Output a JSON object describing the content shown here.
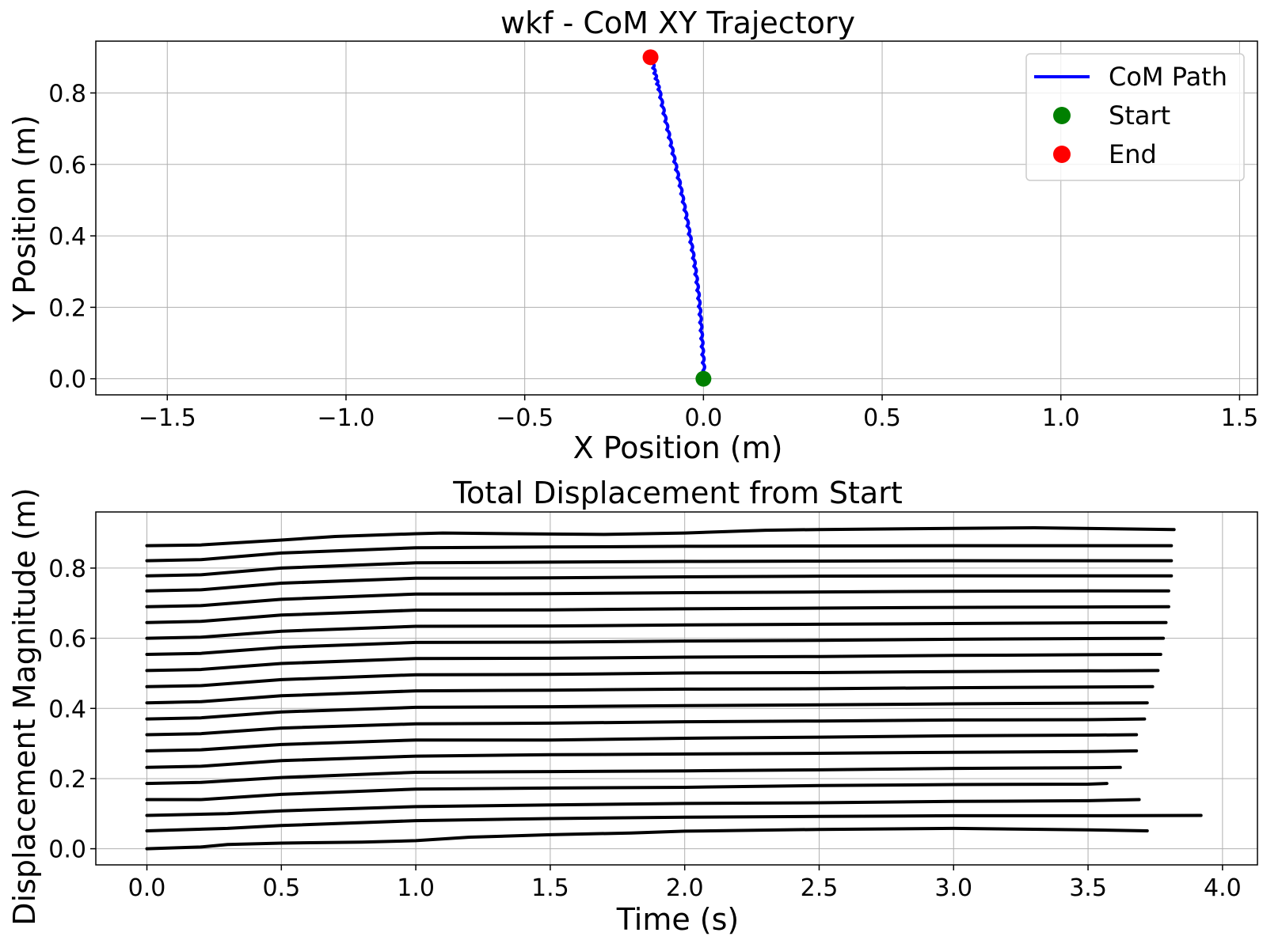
{
  "chart_data": [
    {
      "type": "line",
      "title": "wkf - CoM XY Trajectory",
      "xlabel": "X Position (m)",
      "ylabel": "Y Position (m)",
      "xlim": [
        -1.7,
        1.55
      ],
      "ylim": [
        -0.045,
        0.945
      ],
      "xticks": [
        -1.5,
        -1.0,
        -0.5,
        0.0,
        0.5,
        1.0,
        1.5
      ],
      "xtick_labels": [
        "−1.5",
        "−1.0",
        "−0.5",
        "0.0",
        "0.5",
        "1.0",
        "1.5"
      ],
      "yticks": [
        0.0,
        0.2,
        0.4,
        0.6,
        0.8
      ],
      "ytick_labels": [
        "0.0",
        "0.2",
        "0.4",
        "0.6",
        "0.8"
      ],
      "grid": true,
      "legend_position": "top-right",
      "series": [
        {
          "name": "CoM Path",
          "color": "#0000ff",
          "x": [
            0.0,
            -0.003,
            -0.006,
            -0.009,
            -0.012,
            -0.016,
            -0.021,
            -0.027,
            -0.034,
            -0.042,
            -0.05,
            -0.059,
            -0.068,
            -0.078,
            -0.088,
            -0.098,
            -0.108,
            -0.118,
            -0.127,
            -0.135,
            -0.142,
            -0.148
          ],
          "y": [
            0.0,
            0.045,
            0.09,
            0.135,
            0.18,
            0.225,
            0.27,
            0.315,
            0.36,
            0.405,
            0.45,
            0.495,
            0.54,
            0.585,
            0.63,
            0.675,
            0.72,
            0.765,
            0.81,
            0.84,
            0.87,
            0.9
          ]
        }
      ],
      "markers": [
        {
          "name": "Start",
          "color": "#008000",
          "x": 0.0,
          "y": 0.0
        },
        {
          "name": "End",
          "color": "#ff0000",
          "x": -0.148,
          "y": 0.9
        }
      ]
    },
    {
      "type": "line",
      "title": "Total Displacement from Start",
      "xlabel": "Time (s)",
      "ylabel": "Displacement Magnitude (m)",
      "xlim": [
        -0.19,
        4.13
      ],
      "ylim": [
        -0.046,
        0.96
      ],
      "xticks": [
        0.0,
        0.5,
        1.0,
        1.5,
        2.0,
        2.5,
        3.0,
        3.5,
        4.0
      ],
      "xtick_labels": [
        "0.0",
        "0.5",
        "1.0",
        "1.5",
        "2.0",
        "2.5",
        "3.0",
        "3.5",
        "4.0"
      ],
      "yticks": [
        0.0,
        0.2,
        0.4,
        0.6,
        0.8
      ],
      "ytick_labels": [
        "0.0",
        "0.2",
        "0.4",
        "0.6",
        "0.8"
      ],
      "grid": true,
      "line_color": "#000000",
      "segments": [
        {
          "t": [
            0.0,
            0.2,
            0.3,
            0.5,
            0.8,
            1.0,
            1.2,
            1.5,
            1.8,
            2.0,
            2.5,
            3.0,
            3.5,
            3.72
          ],
          "y": [
            0.0,
            0.005,
            0.012,
            0.016,
            0.019,
            0.023,
            0.033,
            0.04,
            0.045,
            0.05,
            0.055,
            0.058,
            0.054,
            0.051
          ]
        },
        {
          "t": [
            0.0,
            0.3,
            0.5,
            1.0,
            1.5,
            2.0,
            2.5,
            3.0,
            3.5,
            3.92
          ],
          "y": [
            0.051,
            0.058,
            0.066,
            0.08,
            0.086,
            0.09,
            0.092,
            0.094,
            0.094,
            0.095
          ]
        },
        {
          "t": [
            0.0,
            0.3,
            0.5,
            1.0,
            1.5,
            2.0,
            2.5,
            3.0,
            3.5,
            3.69
          ],
          "y": [
            0.095,
            0.1,
            0.108,
            0.12,
            0.125,
            0.129,
            0.131,
            0.135,
            0.137,
            0.14
          ]
        },
        {
          "t": [
            0.0,
            0.2,
            0.5,
            1.0,
            1.5,
            2.0,
            2.5,
            3.0,
            3.5,
            3.57
          ],
          "y": [
            0.14,
            0.14,
            0.155,
            0.17,
            0.173,
            0.175,
            0.18,
            0.183,
            0.184,
            0.186
          ]
        },
        {
          "t": [
            0.0,
            0.2,
            0.5,
            1.0,
            1.5,
            2.0,
            2.5,
            3.0,
            3.5,
            3.62
          ],
          "y": [
            0.186,
            0.189,
            0.203,
            0.218,
            0.22,
            0.222,
            0.225,
            0.229,
            0.231,
            0.232
          ]
        },
        {
          "t": [
            0.0,
            0.2,
            0.5,
            1.0,
            1.5,
            2.0,
            2.5,
            3.0,
            3.5,
            3.68
          ],
          "y": [
            0.232,
            0.235,
            0.251,
            0.264,
            0.268,
            0.27,
            0.272,
            0.275,
            0.277,
            0.279
          ]
        },
        {
          "t": [
            0.0,
            0.2,
            0.5,
            1.0,
            1.5,
            2.0,
            2.5,
            3.0,
            3.5,
            3.68
          ],
          "y": [
            0.279,
            0.282,
            0.297,
            0.31,
            0.31,
            0.315,
            0.318,
            0.322,
            0.324,
            0.325
          ]
        },
        {
          "t": [
            0.0,
            0.2,
            0.5,
            1.0,
            1.5,
            2.0,
            2.5,
            3.0,
            3.5,
            3.71
          ],
          "y": [
            0.325,
            0.328,
            0.344,
            0.356,
            0.358,
            0.362,
            0.364,
            0.367,
            0.368,
            0.37
          ]
        },
        {
          "t": [
            0.0,
            0.2,
            0.5,
            1.0,
            1.5,
            2.0,
            2.5,
            3.0,
            3.5,
            3.72
          ],
          "y": [
            0.37,
            0.373,
            0.39,
            0.403,
            0.405,
            0.408,
            0.41,
            0.413,
            0.415,
            0.416
          ]
        },
        {
          "t": [
            0.0,
            0.2,
            0.5,
            1.0,
            1.5,
            2.0,
            2.5,
            3.0,
            3.5,
            3.74
          ],
          "y": [
            0.416,
            0.419,
            0.436,
            0.45,
            0.452,
            0.455,
            0.456,
            0.459,
            0.461,
            0.462
          ]
        },
        {
          "t": [
            0.0,
            0.2,
            0.5,
            1.0,
            1.5,
            2.0,
            2.5,
            3.0,
            3.5,
            3.76
          ],
          "y": [
            0.462,
            0.465,
            0.482,
            0.496,
            0.497,
            0.501,
            0.502,
            0.505,
            0.507,
            0.508
          ]
        },
        {
          "t": [
            0.0,
            0.2,
            0.5,
            1.0,
            1.5,
            2.0,
            2.5,
            3.0,
            3.5,
            3.77
          ],
          "y": [
            0.508,
            0.511,
            0.528,
            0.542,
            0.543,
            0.546,
            0.548,
            0.551,
            0.553,
            0.554
          ]
        },
        {
          "t": [
            0.0,
            0.2,
            0.5,
            1.0,
            1.5,
            2.0,
            2.5,
            3.0,
            3.5,
            3.78
          ],
          "y": [
            0.554,
            0.557,
            0.574,
            0.588,
            0.589,
            0.592,
            0.594,
            0.597,
            0.599,
            0.6
          ]
        },
        {
          "t": [
            0.0,
            0.2,
            0.5,
            1.0,
            1.5,
            2.0,
            2.5,
            3.0,
            3.5,
            3.79
          ],
          "y": [
            0.6,
            0.603,
            0.62,
            0.634,
            0.635,
            0.638,
            0.64,
            0.642,
            0.644,
            0.645
          ]
        },
        {
          "t": [
            0.0,
            0.2,
            0.5,
            1.0,
            1.5,
            2.0,
            2.5,
            3.0,
            3.5,
            3.8
          ],
          "y": [
            0.645,
            0.648,
            0.666,
            0.68,
            0.681,
            0.684,
            0.686,
            0.688,
            0.689,
            0.69
          ]
        },
        {
          "t": [
            0.0,
            0.2,
            0.5,
            1.0,
            1.5,
            2.0,
            2.5,
            3.0,
            3.5,
            3.8
          ],
          "y": [
            0.69,
            0.693,
            0.711,
            0.726,
            0.727,
            0.73,
            0.732,
            0.734,
            0.735,
            0.735
          ]
        },
        {
          "t": [
            0.0,
            0.2,
            0.5,
            1.0,
            1.5,
            2.0,
            2.5,
            3.0,
            3.5,
            3.81
          ],
          "y": [
            0.735,
            0.738,
            0.757,
            0.771,
            0.772,
            0.775,
            0.777,
            0.778,
            0.778,
            0.778
          ]
        },
        {
          "t": [
            0.0,
            0.2,
            0.5,
            1.0,
            1.5,
            2.0,
            2.5,
            3.0,
            3.5,
            3.81
          ],
          "y": [
            0.778,
            0.781,
            0.8,
            0.815,
            0.817,
            0.819,
            0.82,
            0.821,
            0.821,
            0.821
          ]
        },
        {
          "t": [
            0.0,
            0.2,
            0.5,
            1.0,
            1.5,
            2.0,
            2.5,
            3.0,
            3.5,
            3.81
          ],
          "y": [
            0.821,
            0.824,
            0.843,
            0.858,
            0.86,
            0.862,
            0.863,
            0.864,
            0.864,
            0.864
          ]
        },
        {
          "t": [
            0.0,
            0.2,
            0.5,
            0.7,
            1.0,
            1.1,
            1.5,
            1.7,
            2.0,
            2.3,
            2.5,
            3.0,
            3.3,
            3.82
          ],
          "y": [
            0.864,
            0.866,
            0.88,
            0.89,
            0.898,
            0.9,
            0.897,
            0.896,
            0.9,
            0.908,
            0.91,
            0.913,
            0.915,
            0.91
          ]
        }
      ]
    }
  ]
}
